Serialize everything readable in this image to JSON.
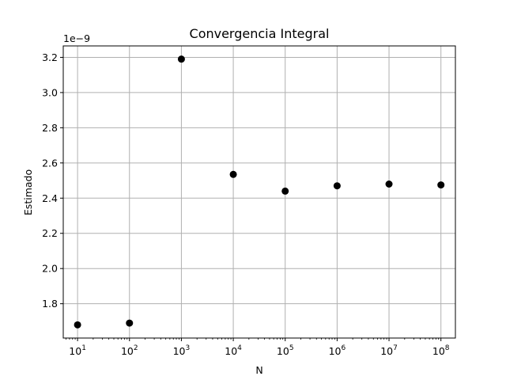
{
  "chart_data": {
    "type": "scatter",
    "title": "Convergencia Integral",
    "xlabel": "N",
    "ylabel": "Estimado",
    "x_scale": "log",
    "y_offset_text": "1e−9",
    "y_multiplier": 1e-09,
    "x": [
      10,
      100,
      1000,
      10000,
      100000,
      1000000,
      10000000,
      100000000
    ],
    "y": [
      1.68e-09,
      1.69e-09,
      3.19e-09,
      2.535e-09,
      2.44e-09,
      2.47e-09,
      2.48e-09,
      2.475e-09
    ],
    "x_ticks": [
      {
        "base": "10",
        "exp": "1",
        "value": 10
      },
      {
        "base": "10",
        "exp": "2",
        "value": 100
      },
      {
        "base": "10",
        "exp": "3",
        "value": 1000
      },
      {
        "base": "10",
        "exp": "4",
        "value": 10000
      },
      {
        "base": "10",
        "exp": "5",
        "value": 100000
      },
      {
        "base": "10",
        "exp": "6",
        "value": 1000000
      },
      {
        "base": "10",
        "exp": "7",
        "value": 10000000
      },
      {
        "base": "10",
        "exp": "8",
        "value": 100000000
      }
    ],
    "y_ticks": [
      "1.8",
      "2.0",
      "2.2",
      "2.4",
      "2.6",
      "2.8",
      "3.0",
      "3.2"
    ],
    "xlim": [
      5.3,
      190000000
    ],
    "ylim": [
      1.605e-09,
      3.265e-09
    ],
    "grid": true,
    "marker_color": "#000000",
    "grid_color": "#b0b0b0"
  }
}
